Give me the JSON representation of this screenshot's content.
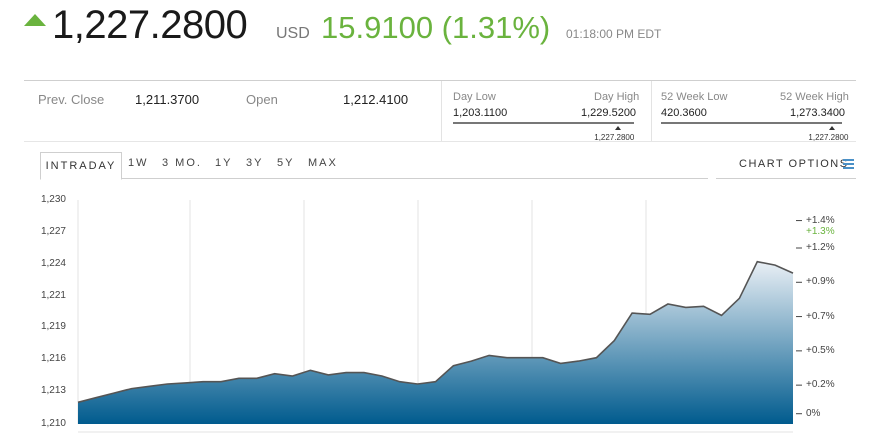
{
  "header": {
    "price": "1,227.2800",
    "currency": "USD",
    "change": "15.9100 (1.31%)",
    "time": "01:18:00 PM EDT",
    "direction_icon": "up-arrow-icon",
    "up_color": "#6ab33e"
  },
  "stats": {
    "prev_close_label": "Prev. Close",
    "prev_close": "1,211.3700",
    "open_label": "Open",
    "open": "1,212.4100",
    "day_low_label": "Day Low",
    "day_low": "1,203.1100",
    "day_high_label": "Day High",
    "day_high": "1,229.5200",
    "day_marker": "1,227.2800",
    "wk52_low_label": "52 Week Low",
    "wk52_low": "420.3600",
    "wk52_high_label": "52 Week High",
    "wk52_high": "1,273.3400",
    "wk52_marker": "1,227.2800",
    "day_position": 0.913,
    "wk52_position": 0.947
  },
  "tabs": {
    "items": [
      "INTRADAY",
      "1W",
      "3 MO.",
      "1Y",
      "3Y",
      "5Y",
      "MAX"
    ],
    "active": "INTRADAY",
    "chart_options": "CHART OPTIONS",
    "menu_icon": "hamburger-menu-icon"
  },
  "chart_data": {
    "type": "area",
    "series": [
      {
        "values": [
          1212.4,
          1212.8,
          1213.2,
          1213.6,
          1213.8,
          1214.0,
          1214.1,
          1214.2,
          1214.2,
          1214.5,
          1214.5,
          1214.9,
          1214.7,
          1215.2,
          1214.8,
          1215.0,
          1215.0,
          1214.7,
          1214.2,
          1214.0,
          1214.2,
          1215.6,
          1216.0,
          1216.5,
          1216.3,
          1216.3,
          1216.3,
          1215.8,
          1216.0,
          1216.3,
          1217.8,
          1220.2,
          1220.1,
          1221.0,
          1220.7,
          1220.8,
          1220.0,
          1221.5,
          1224.7,
          1224.4,
          1223.7
        ]
      }
    ],
    "ylim": [
      1210.5,
      1230.1
    ],
    "yticks_left": [
      "1,230",
      "1,227",
      "1,224",
      "1,221",
      "1,219",
      "1,216",
      "1,213",
      "1,210"
    ],
    "yticks_right": [
      "+1.4%",
      "+1.3%",
      "+1.2%",
      "+0.9%",
      "+0.7%",
      "+0.5%",
      "+0.2%",
      "0%"
    ],
    "right_tick_values": [
      1228.3,
      1227.28,
      1225.9,
      1222.9,
      1219.9,
      1216.9,
      1213.9,
      1211.4
    ],
    "highlight_tick": "+1.3%",
    "line_color": "#555555",
    "fill_top_color": "#e9eff5",
    "fill_bottom_color": "#005b8e",
    "grid": true
  }
}
